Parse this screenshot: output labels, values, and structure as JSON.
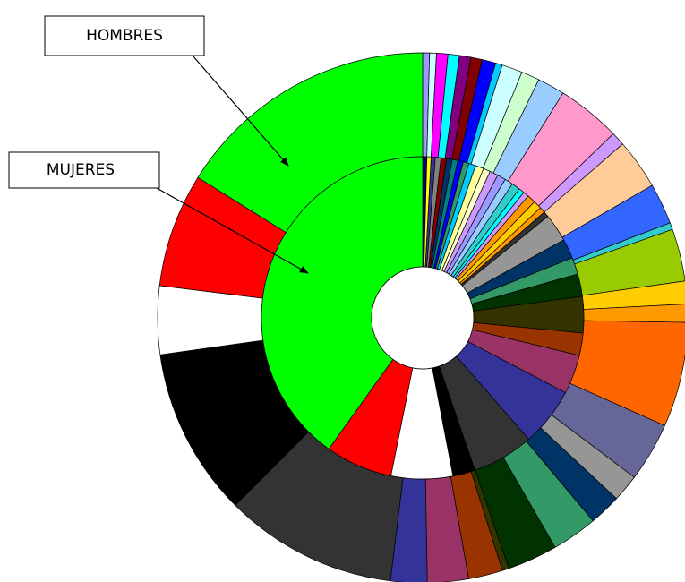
{
  "chart_data": {
    "type": "doughnut",
    "series": [
      {
        "name": "HOMBRES",
        "colors": [
          "#9999ff",
          "#ccffff",
          "#ff00ff",
          "#00ffff",
          "#800080",
          "#800000",
          "#0000ff",
          "#00ccff",
          "#ccffff",
          "#ccffcc",
          "#99ccff",
          "#ff99cc",
          "#cc99ff",
          "#ffcc99",
          "#3366ff",
          "#33cccc",
          "#99cc00",
          "#ffcc00",
          "#ff9900",
          "#ff6600",
          "#666699",
          "#969696",
          "#003366",
          "#339966",
          "#003300",
          "#333300",
          "#993300",
          "#993366",
          "#333399",
          "#333333",
          "#000000",
          "#ffffff",
          "#ff0000",
          "#00ff00"
        ],
        "values": [
          1.5,
          1.5,
          2.5,
          2.5,
          2.5,
          2.5,
          3,
          1.5,
          4.5,
          4,
          6,
          14,
          3,
          11,
          9,
          1.5,
          11.5,
          5,
          4,
          23,
          13,
          6,
          7,
          10,
          11,
          1.5,
          7.5,
          9,
          8,
          38,
          37,
          15,
          25,
          58
        ]
      },
      {
        "name": "MUJERES",
        "colors": [
          "#000080",
          "#ffff00",
          "#333399",
          "#808080",
          "#800000",
          "#003366",
          "#008080",
          "#0000ff",
          "#339966",
          "#00ccff",
          "#ffff99",
          "#ffffcc",
          "#cc99ff",
          "#9999ff",
          "#99ccff",
          "#33cccc",
          "#00ffff",
          "#cc99ff",
          "#ff9900",
          "#ffcc00",
          "#ff9900",
          "#333333",
          "#969696",
          "#003366",
          "#339966",
          "#003300",
          "#333300",
          "#993300",
          "#993366",
          "#333399",
          "#333333",
          "#000000",
          "#ffffff",
          "#ff0000",
          "#00ff00"
        ],
        "values": [
          1.5,
          1.5,
          1.5,
          2,
          2,
          2,
          2,
          2,
          2,
          2.5,
          3,
          2.5,
          3,
          3,
          3,
          3,
          2,
          2,
          3,
          3,
          2,
          2,
          10,
          7,
          6,
          8,
          13,
          8,
          14,
          21,
          22,
          8,
          22,
          24,
          143
        ]
      }
    ]
  }
}
